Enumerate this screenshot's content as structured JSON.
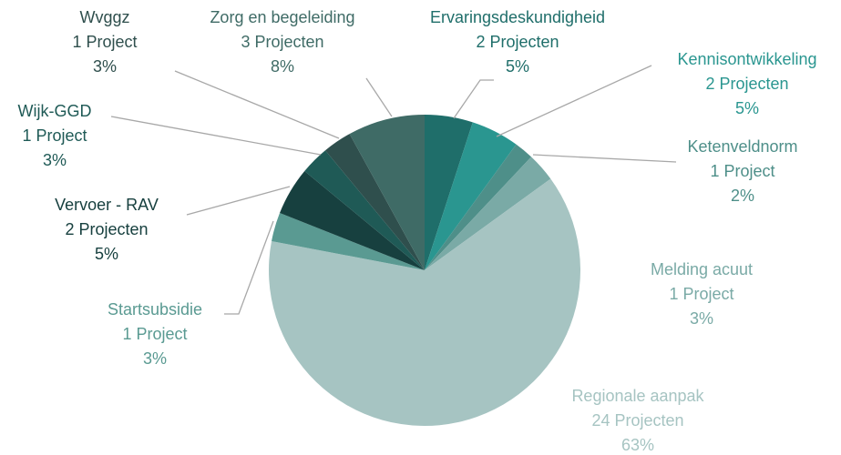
{
  "chart_data": {
    "type": "pie",
    "categories": [
      "Ervaringsdeskundigheid",
      "Kennisontwikkeling",
      "Ketenveldnorm",
      "Melding acuut",
      "Regionale aanpak",
      "Startsubsidie",
      "Vervoer - RAV",
      "Wijk-GGD",
      "Wvggz",
      "Zorg en begeleiding"
    ],
    "project_labels": [
      "2 Projecten",
      "2 Projecten",
      "1 Project",
      "1 Project",
      "24 Projecten",
      "1 Project",
      "2 Projecten",
      "1 Project",
      "1 Project",
      "3 Projecten"
    ],
    "values": [
      5,
      5,
      2,
      3,
      63,
      3,
      5,
      3,
      3,
      8
    ],
    "value_labels": [
      "5%",
      "5%",
      "2%",
      "3%",
      "63%",
      "3%",
      "5%",
      "3%",
      "3%",
      "8%"
    ],
    "colors": [
      "#1f6e6a",
      "#2a9690",
      "#4e8f89",
      "#7aaaa6",
      "#a6c4c2",
      "#5a9a92",
      "#17403f",
      "#1f5a56",
      "#2f4f4d",
      "#3f6b66"
    ]
  }
}
